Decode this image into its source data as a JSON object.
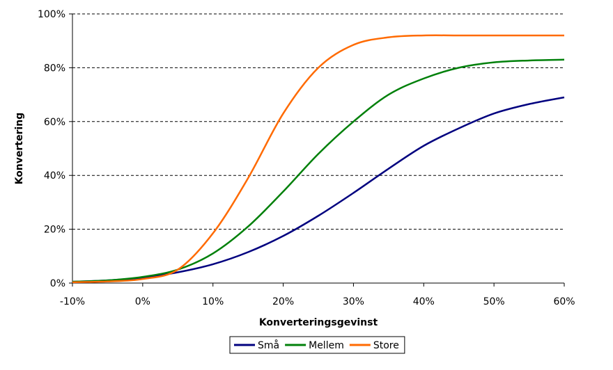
{
  "chart_data": {
    "type": "line",
    "xlabel": "Konverteringsgevinst",
    "ylabel": "Konvertering",
    "xlim": [
      -10,
      60
    ],
    "ylim": [
      0,
      100
    ],
    "x_ticks": [
      -10,
      0,
      10,
      20,
      30,
      40,
      50,
      60
    ],
    "x_tick_labels": [
      "-10%",
      "0%",
      "10%",
      "20%",
      "30%",
      "40%",
      "50%",
      "60%"
    ],
    "y_ticks": [
      0,
      20,
      40,
      60,
      80,
      100
    ],
    "y_tick_labels": [
      "0%",
      "20%",
      "40%",
      "60%",
      "80%",
      "100%"
    ],
    "grid": "horizontal dashed",
    "legend_position": "bottom",
    "x": [
      -10,
      -5,
      0,
      5,
      10,
      15,
      20,
      25,
      30,
      35,
      40,
      45,
      50,
      55,
      60
    ],
    "series": [
      {
        "name": "Små",
        "color": "#00007f",
        "values": [
          0.5,
          1.0,
          2.0,
          4.0,
          7.0,
          11.5,
          17.5,
          25.0,
          33.5,
          42.5,
          51.0,
          57.5,
          63.0,
          66.5,
          69.0
        ]
      },
      {
        "name": "Mellem",
        "color": "#00800a",
        "values": [
          0.5,
          1.0,
          2.3,
          5.0,
          11.0,
          21.0,
          34.0,
          48.0,
          60.0,
          70.0,
          76.0,
          80.0,
          82.0,
          82.7,
          83.0
        ]
      },
      {
        "name": "Store",
        "color": "#ff6a00",
        "values": [
          0.3,
          0.6,
          1.5,
          5.0,
          18.5,
          39.0,
          63.0,
          80.0,
          88.5,
          91.3,
          92.0,
          92.0,
          92.0,
          92.0,
          92.0
        ]
      }
    ]
  }
}
